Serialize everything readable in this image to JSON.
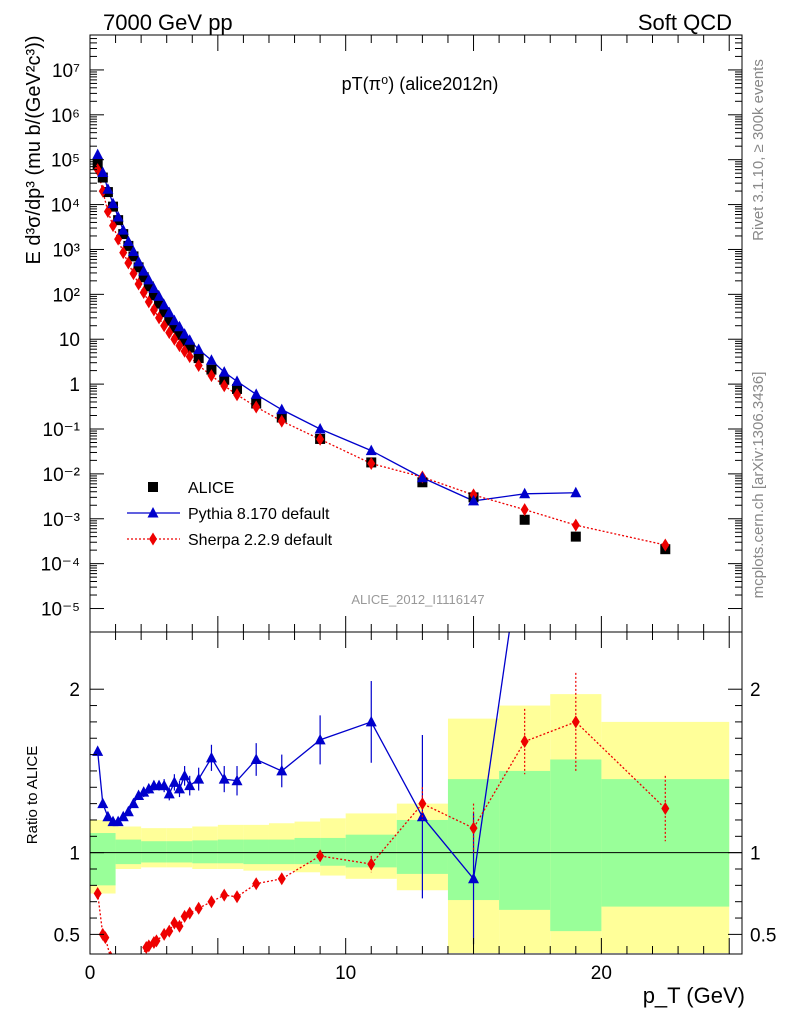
{
  "header": {
    "left": "7000 GeV pp",
    "right": "Soft QCD"
  },
  "plot_title": "pT(π⁰) (alice2012n)",
  "side_labels": {
    "rivet": "Rivet 3.1.10, ≥ 300k events",
    "source": "mcplots.cern.ch [arXiv:1306.3436]"
  },
  "watermark": "ALICE_2012_I1116147",
  "axis_labels": {
    "y_main": "E d³σ/dp³ (mu b/(GeV²c³))",
    "y_ratio": "Ratio to ALICE",
    "x": "p_T (GeV)"
  },
  "legend": [
    {
      "label": "ALICE",
      "color": "#000000",
      "marker": "square"
    },
    {
      "label": "Pythia 8.170 default",
      "color": "#0000cc",
      "marker": "triangle"
    },
    {
      "label": "Sherpa 2.2.9 default",
      "color": "#ee0000",
      "marker": "diamond"
    }
  ],
  "chart_data": [
    {
      "type": "scatter",
      "panel": "main",
      "log_y": true,
      "xlim": [
        0,
        25.5
      ],
      "ylim": [
        3e-06,
        60000000
      ],
      "y_ticks": [
        "10⁻⁵",
        "10⁻⁴",
        "10⁻³",
        "10⁻²",
        "10⁻¹",
        "1",
        "10",
        "10²",
        "10³",
        "10⁴",
        "10⁵",
        "10⁶",
        "10⁷"
      ],
      "x_ticks": [
        "0",
        "10",
        "20"
      ],
      "series": [
        {
          "name": "ALICE",
          "x": [
            0.3,
            0.5,
            0.7,
            0.9,
            1.1,
            1.3,
            1.5,
            1.7,
            1.9,
            2.1,
            2.3,
            2.5,
            2.7,
            2.9,
            3.1,
            3.3,
            3.5,
            3.7,
            3.9,
            4.25,
            4.75,
            5.25,
            5.75,
            6.5,
            7.5,
            9,
            11,
            13,
            15,
            17,
            19,
            22.5
          ],
          "y": [
            80000,
            40000,
            19000,
            9000,
            4500,
            2200,
            1200,
            700,
            400,
            240,
            150,
            95,
            62,
            40,
            26,
            18,
            12.5,
            9,
            6.5,
            3.8,
            2.1,
            1.25,
            0.78,
            0.37,
            0.18,
            0.06,
            0.018,
            0.0065,
            0.003,
            0.00095,
            0.0004,
            0.00021
          ]
        },
        {
          "name": "Pythia 8.170 default",
          "x": [
            0.3,
            0.5,
            0.7,
            0.9,
            1.1,
            1.3,
            1.5,
            1.7,
            1.9,
            2.1,
            2.3,
            2.5,
            2.7,
            2.9,
            3.1,
            3.3,
            3.5,
            3.7,
            3.9,
            4.25,
            4.75,
            5.25,
            5.75,
            6.5,
            7.5,
            9,
            11,
            13,
            15,
            17,
            19
          ],
          "y": [
            130000,
            52000,
            22000,
            10500,
            5300,
            2700,
            1500,
            900,
            530,
            330,
            210,
            135,
            90,
            58,
            39,
            26,
            19,
            13,
            9.5,
            5.9,
            3.4,
            1.85,
            1.15,
            0.59,
            0.27,
            0.1,
            0.033,
            0.0082,
            0.0025,
            0.0036,
            0.0038
          ]
        },
        {
          "name": "Sherpa 2.2.9 default",
          "x": [
            0.3,
            0.5,
            0.7,
            0.9,
            1.1,
            1.3,
            1.5,
            1.7,
            1.9,
            2.1,
            2.3,
            2.5,
            2.7,
            2.9,
            3.1,
            3.3,
            3.5,
            3.7,
            3.9,
            4.25,
            4.75,
            5.25,
            5.75,
            6.5,
            7.5,
            9,
            11,
            13,
            15,
            17,
            19,
            22.5
          ],
          "y": [
            60000,
            20000,
            7000,
            3400,
            1700,
            850,
            500,
            290,
            170,
            110,
            68,
            45,
            30,
            20,
            14,
            10,
            7.2,
            5.4,
            4.1,
            2.6,
            1.55,
            0.92,
            0.58,
            0.31,
            0.15,
            0.059,
            0.017,
            0.0085,
            0.0034,
            0.0016,
            0.00072,
            0.00026
          ]
        }
      ]
    },
    {
      "type": "line",
      "panel": "ratio",
      "ylim": [
        0.38,
        2.35
      ],
      "xlim": [
        0,
        25.5
      ],
      "y_ticks": [
        "0.5",
        "1",
        "2"
      ],
      "x_ticks": [
        "0",
        "10",
        "20"
      ],
      "reference_line": 1,
      "bands": [
        {
          "x": [
            0,
            1,
            2,
            3,
            4,
            5,
            6,
            7,
            8,
            9,
            10,
            12,
            14,
            16,
            18,
            20,
            25
          ],
          "inner_lo": [
            0.8,
            0.93,
            0.94,
            0.94,
            0.935,
            0.935,
            0.93,
            0.93,
            0.93,
            0.92,
            0.91,
            0.87,
            0.71,
            0.65,
            0.52,
            0.67
          ],
          "inner_hi": [
            1.12,
            1.08,
            1.07,
            1.07,
            1.075,
            1.08,
            1.08,
            1.08,
            1.09,
            1.09,
            1.11,
            1.2,
            1.45,
            1.5,
            1.57,
            1.45
          ],
          "outer_lo": [
            0.75,
            0.9,
            0.91,
            0.91,
            0.9,
            0.9,
            0.89,
            0.89,
            0.88,
            0.86,
            0.84,
            0.77,
            0.3,
            0.3,
            0.3,
            0.3
          ],
          "outer_hi": [
            1.2,
            1.16,
            1.15,
            1.15,
            1.16,
            1.17,
            1.17,
            1.18,
            1.19,
            1.21,
            1.24,
            1.3,
            1.82,
            1.9,
            1.97,
            1.8
          ]
        }
      ],
      "series": [
        {
          "name": "Pythia 8.170 default",
          "x": [
            0.3,
            0.5,
            0.7,
            0.9,
            1.1,
            1.3,
            1.5,
            1.7,
            1.9,
            2.1,
            2.3,
            2.5,
            2.7,
            2.9,
            3.1,
            3.3,
            3.5,
            3.7,
            3.9,
            4.25,
            4.75,
            5.25,
            5.75,
            6.5,
            7.5,
            9,
            11,
            13,
            15,
            17
          ],
          "y": [
            1.62,
            1.3,
            1.22,
            1.19,
            1.19,
            1.22,
            1.25,
            1.3,
            1.35,
            1.37,
            1.39,
            1.41,
            1.41,
            1.41,
            1.36,
            1.43,
            1.39,
            1.47,
            1.41,
            1.45,
            1.58,
            1.45,
            1.44,
            1.57,
            1.5,
            1.69,
            1.8,
            1.22,
            0.84,
            3.0
          ],
          "yerr": [
            0.02,
            0.02,
            0.02,
            0.02,
            0.02,
            0.02,
            0.02,
            0.02,
            0.02,
            0.03,
            0.03,
            0.03,
            0.03,
            0.04,
            0.04,
            0.05,
            0.05,
            0.06,
            0.06,
            0.07,
            0.08,
            0.08,
            0.09,
            0.1,
            0.1,
            0.15,
            0.25,
            0.5,
            0.4,
            0
          ]
        },
        {
          "name": "Sherpa 2.2.9 default",
          "x": [
            0.3,
            0.5,
            0.6,
            0.8,
            2.0,
            2.2,
            2.3,
            2.5,
            2.6,
            2.9,
            3.1,
            3.3,
            3.5,
            3.7,
            3.9,
            4.25,
            4.75,
            5.25,
            5.75,
            6.5,
            7.5,
            9,
            11,
            13,
            15,
            17,
            19,
            22.5
          ],
          "y": [
            0.75,
            0.5,
            0.48,
            0.36,
            0.35,
            0.42,
            0.43,
            0.45,
            0.46,
            0.5,
            0.52,
            0.57,
            0.55,
            0.61,
            0.63,
            0.66,
            0.7,
            0.74,
            0.73,
            0.81,
            0.84,
            0.98,
            0.93,
            1.3,
            1.15,
            1.68,
            1.8,
            1.27
          ],
          "yerr": [
            0.02,
            0.02,
            0.02,
            0.02,
            0.01,
            0.01,
            0.01,
            0.01,
            0.01,
            0.01,
            0.01,
            0.01,
            0.01,
            0.01,
            0.01,
            0.01,
            0.02,
            0.02,
            0.02,
            0.02,
            0.03,
            0.03,
            0.05,
            0.1,
            0.15,
            0.2,
            0.3,
            0.2
          ]
        }
      ]
    }
  ]
}
